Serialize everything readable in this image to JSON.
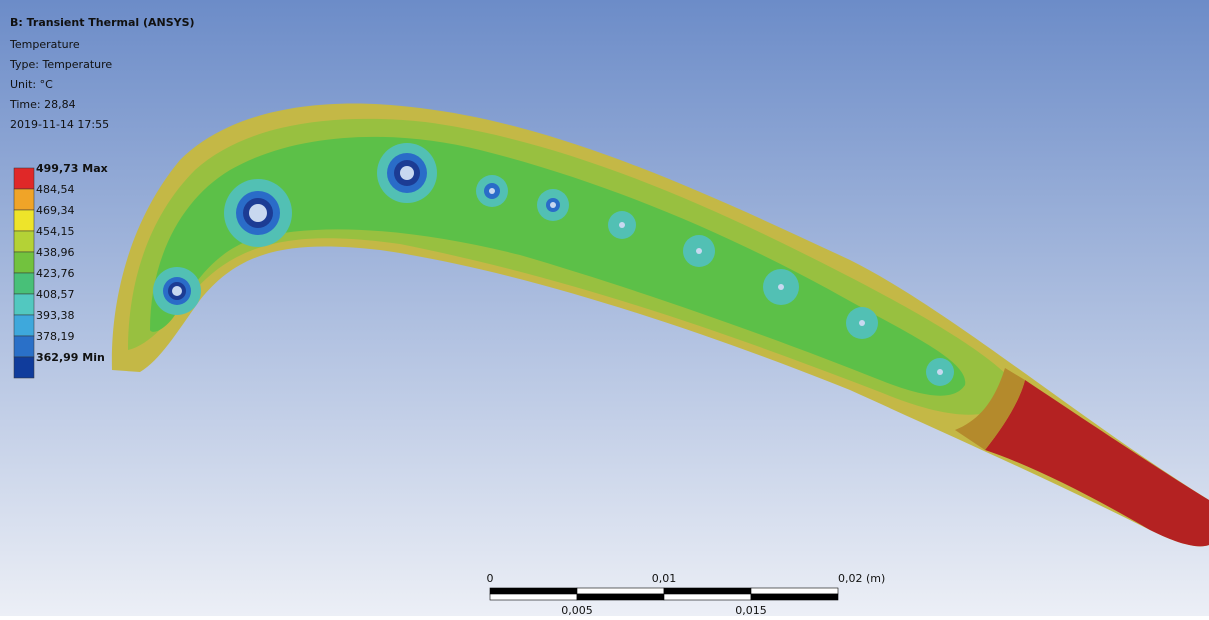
{
  "header": {
    "title": "B: Transient Thermal (ANSYS)",
    "lines": [
      "Temperature",
      "Type: Temperature",
      "Unit: °C",
      "Time: 28,84",
      "2019-11-14 17:55"
    ]
  },
  "legend": {
    "labels": [
      "499,73 Max",
      "484,54",
      "469,34",
      "454,15",
      "438,96",
      "423,76",
      "408,57",
      "393,38",
      "378,19",
      "362,99 Min"
    ],
    "colors": [
      "#e02828",
      "#f0a428",
      "#eee42a",
      "#b4d236",
      "#72c23e",
      "#48c078",
      "#52c8c0",
      "#3ea8dc",
      "#2a70c8",
      "#103c9c"
    ]
  },
  "scale_bar": {
    "top_labels": [
      "0",
      "0,01",
      "0,02 (m)"
    ],
    "bottom_labels": [
      "0,005",
      "0,015"
    ]
  }
}
